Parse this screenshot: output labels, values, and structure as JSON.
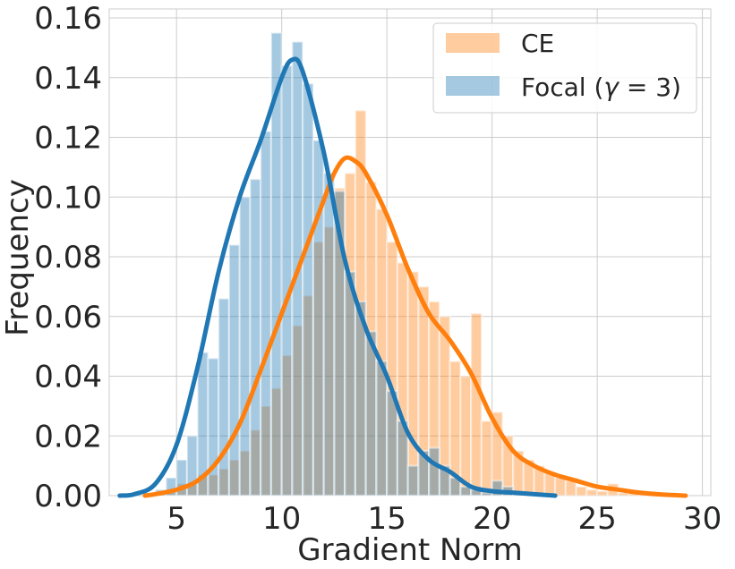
{
  "chart_data": {
    "type": "histogram",
    "xlabel": "Gradient Norm",
    "ylabel": "Frequency",
    "xlim": [
      1.8,
      30.4
    ],
    "ylim": [
      0,
      0.163
    ],
    "xticks": [
      5,
      10,
      15,
      20,
      25,
      30
    ],
    "yticks": [
      0.0,
      0.02,
      0.04,
      0.06,
      0.08,
      0.1,
      0.12,
      0.14,
      0.16
    ],
    "ytick_labels": [
      "0.00",
      "0.02",
      "0.04",
      "0.06",
      "0.08",
      "0.10",
      "0.12",
      "0.14",
      "0.16"
    ],
    "grid": true,
    "legend_position": "top-right",
    "series": [
      {
        "name": "CE",
        "color": "#ff7f0e",
        "bins": [
          [
            4.25,
            0.001
          ],
          [
            4.75,
            0.001
          ],
          [
            5.25,
            0.004
          ],
          [
            5.75,
            0.004
          ],
          [
            6.25,
            0.007
          ],
          [
            6.75,
            0.007
          ],
          [
            7.25,
            0.009
          ],
          [
            7.75,
            0.012
          ],
          [
            8.25,
            0.015
          ],
          [
            8.75,
            0.022
          ],
          [
            9.25,
            0.03
          ],
          [
            9.75,
            0.036
          ],
          [
            10.25,
            0.047
          ],
          [
            10.75,
            0.057
          ],
          [
            11.25,
            0.067
          ],
          [
            11.75,
            0.085
          ],
          [
            12.25,
            0.09
          ],
          [
            12.75,
            0.103
          ],
          [
            13.25,
            0.108
          ],
          [
            13.75,
            0.129
          ],
          [
            14.25,
            0.105
          ],
          [
            14.75,
            0.096
          ],
          [
            15.25,
            0.085
          ],
          [
            15.75,
            0.078
          ],
          [
            16.25,
            0.075
          ],
          [
            16.75,
            0.07
          ],
          [
            17.25,
            0.065
          ],
          [
            17.75,
            0.06
          ],
          [
            18.25,
            0.045
          ],
          [
            18.75,
            0.04
          ],
          [
            19.25,
            0.061
          ],
          [
            19.75,
            0.025
          ],
          [
            20.25,
            0.028
          ],
          [
            20.75,
            0.02
          ],
          [
            21.25,
            0.015
          ],
          [
            21.75,
            0.012
          ],
          [
            22.25,
            0.01
          ],
          [
            22.75,
            0.008
          ],
          [
            23.25,
            0.006
          ],
          [
            23.75,
            0.005
          ],
          [
            24.25,
            0.003
          ],
          [
            24.75,
            0.002
          ],
          [
            25.25,
            0.0015
          ],
          [
            25.75,
            0.004
          ],
          [
            26.25,
            0.001
          ],
          [
            26.75,
            0.0008
          ],
          [
            27.25,
            0.0005
          ]
        ],
        "kde": [
          [
            3.5,
            0
          ],
          [
            4,
            0.0005
          ],
          [
            5,
            0.002
          ],
          [
            6,
            0.005
          ],
          [
            7,
            0.012
          ],
          [
            8,
            0.024
          ],
          [
            9,
            0.042
          ],
          [
            10,
            0.061
          ],
          [
            11,
            0.08
          ],
          [
            12,
            0.099
          ],
          [
            12.5,
            0.108
          ],
          [
            13,
            0.113
          ],
          [
            13.5,
            0.112
          ],
          [
            14,
            0.108
          ],
          [
            15,
            0.094
          ],
          [
            16,
            0.076
          ],
          [
            17,
            0.061
          ],
          [
            18,
            0.052
          ],
          [
            19,
            0.041
          ],
          [
            20,
            0.026
          ],
          [
            21,
            0.015
          ],
          [
            22,
            0.01
          ],
          [
            23,
            0.007
          ],
          [
            24,
            0.005
          ],
          [
            25,
            0.003
          ],
          [
            26,
            0.002
          ],
          [
            27,
            0.001
          ],
          [
            28,
            0.0004
          ],
          [
            29.2,
            0
          ]
        ]
      },
      {
        "name": "Focal (γ = 3)",
        "name_prefix": "Focal (",
        "name_gamma": "γ",
        "name_suffix": " = 3)",
        "color": "#1f77b4",
        "bins": [
          [
            4.25,
            0.002
          ],
          [
            4.75,
            0.006
          ],
          [
            5.25,
            0.012
          ],
          [
            5.75,
            0.02
          ],
          [
            6.25,
            0.048
          ],
          [
            6.75,
            0.046
          ],
          [
            7.25,
            0.066
          ],
          [
            7.75,
            0.084
          ],
          [
            8.25,
            0.1
          ],
          [
            8.75,
            0.106
          ],
          [
            9.25,
            0.122
          ],
          [
            9.75,
            0.155
          ],
          [
            10.25,
            0.144
          ],
          [
            10.75,
            0.152
          ],
          [
            11.25,
            0.138
          ],
          [
            11.75,
            0.119
          ],
          [
            12.25,
            0.108
          ],
          [
            12.75,
            0.102
          ],
          [
            13.25,
            0.075
          ],
          [
            13.75,
            0.065
          ],
          [
            14.25,
            0.055
          ],
          [
            14.75,
            0.045
          ],
          [
            15.25,
            0.035
          ],
          [
            15.75,
            0.025
          ],
          [
            16.25,
            0.01
          ],
          [
            16.75,
            0.015
          ],
          [
            17.25,
            0.016
          ],
          [
            17.75,
            0.01
          ],
          [
            18.25,
            0.006
          ],
          [
            18.75,
            0.003
          ],
          [
            19.25,
            0.002
          ],
          [
            19.75,
            0.001
          ],
          [
            20.25,
            0.005
          ],
          [
            20.75,
            0.003
          ],
          [
            21.25,
            0.001
          ]
        ],
        "kde": [
          [
            2.3,
            0
          ],
          [
            3,
            0.0005
          ],
          [
            4,
            0.004
          ],
          [
            5,
            0.017
          ],
          [
            6,
            0.043
          ],
          [
            7,
            0.075
          ],
          [
            8,
            0.1
          ],
          [
            9,
            0.119
          ],
          [
            10,
            0.14
          ],
          [
            10.5,
            0.146
          ],
          [
            11,
            0.142
          ],
          [
            12,
            0.115
          ],
          [
            13,
            0.079
          ],
          [
            14,
            0.056
          ],
          [
            15,
            0.04
          ],
          [
            16,
            0.021
          ],
          [
            17,
            0.012
          ],
          [
            18,
            0.008
          ],
          [
            19,
            0.003
          ],
          [
            20,
            0.0015
          ],
          [
            21,
            0.001
          ],
          [
            22,
            0.0005
          ],
          [
            23,
            0
          ]
        ]
      }
    ]
  }
}
